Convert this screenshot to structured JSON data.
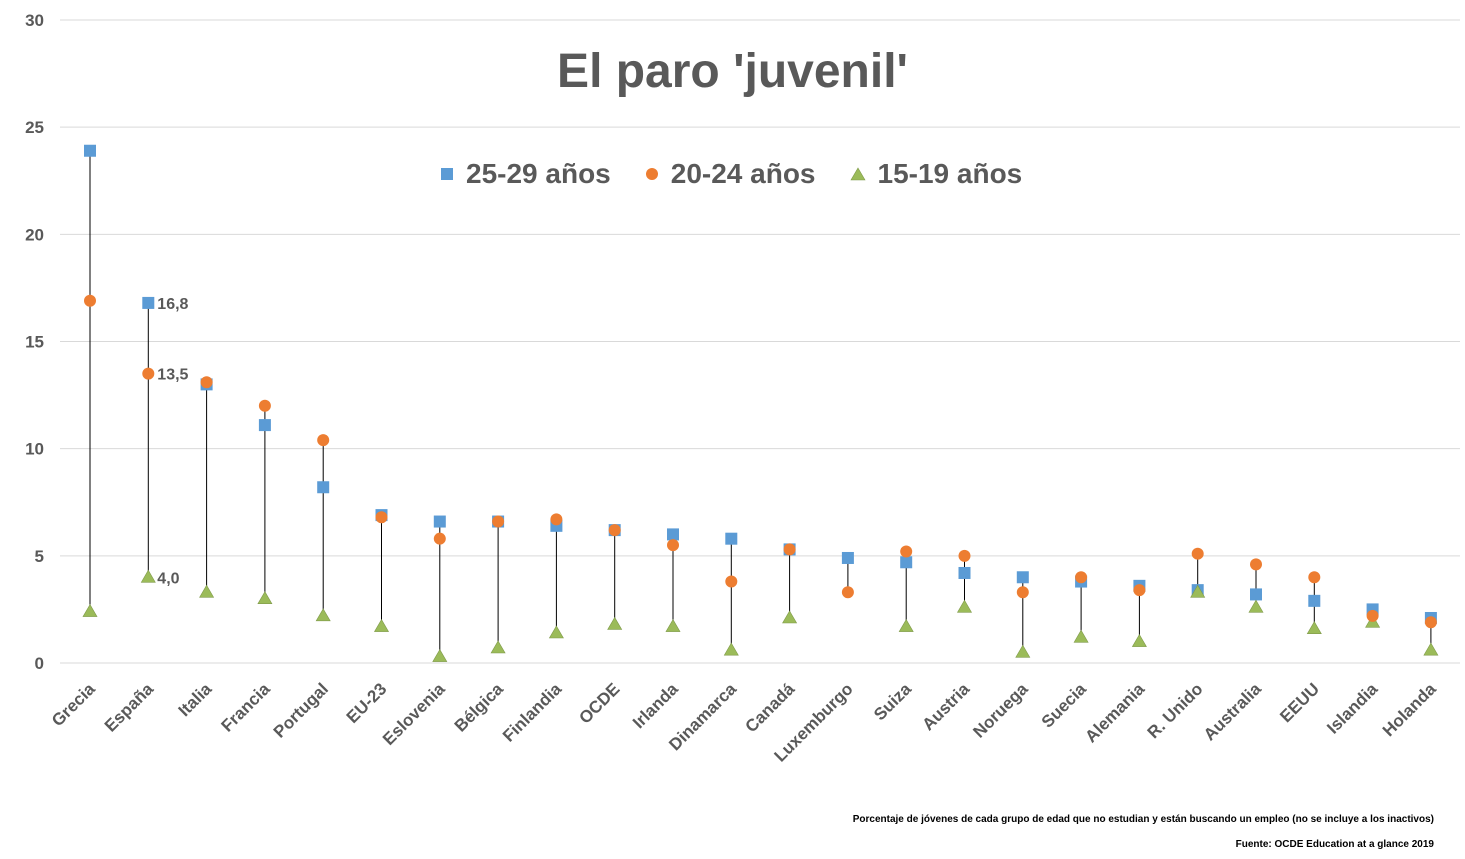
{
  "chart_data": {
    "type": "scatter",
    "title": "El paro 'juvenil'",
    "categories": [
      "Grecia",
      "España",
      "Italia",
      "Francia",
      "Portugal",
      "EU-23",
      "Eslovenia",
      "Bélgica",
      "Finlandia",
      "OCDE",
      "Irlanda",
      "Dinamarca",
      "Canadá",
      "Luxemburgo",
      "Suiza",
      "Austria",
      "Noruega",
      "Suecia",
      "Alemania",
      "R. Unido",
      "Australia",
      "EEUU",
      "Islandia",
      "Holanda"
    ],
    "series": [
      {
        "name": "25-29 años",
        "marker": "square",
        "color": "#5B9BD5",
        "values": [
          23.9,
          16.8,
          13.0,
          11.1,
          8.2,
          6.9,
          6.6,
          6.6,
          6.4,
          6.2,
          6.0,
          5.8,
          5.3,
          4.9,
          4.7,
          4.2,
          4.0,
          3.8,
          3.6,
          3.4,
          3.2,
          2.9,
          2.5,
          2.1
        ]
      },
      {
        "name": "20-24 años",
        "marker": "circle",
        "color": "#ED7D31",
        "values": [
          16.9,
          13.5,
          13.1,
          12.0,
          10.4,
          6.8,
          5.8,
          6.6,
          6.7,
          6.2,
          5.5,
          3.8,
          5.3,
          3.3,
          5.2,
          5.0,
          3.3,
          4.0,
          3.4,
          5.1,
          4.6,
          4.0,
          2.2,
          1.9
        ]
      },
      {
        "name": "15-19 años",
        "marker": "triangle",
        "color": "#9BBB59",
        "values": [
          2.4,
          4.0,
          3.3,
          3.0,
          2.2,
          1.7,
          0.3,
          0.7,
          1.4,
          1.8,
          1.7,
          0.6,
          2.1,
          null,
          1.7,
          2.6,
          0.5,
          1.2,
          1.0,
          3.3,
          2.6,
          1.6,
          1.9,
          0.6
        ]
      }
    ],
    "data_labels": [
      {
        "category": "España",
        "series": "25-29 años",
        "text": "16,8"
      },
      {
        "category": "España",
        "series": "20-24 años",
        "text": "13,5"
      },
      {
        "category": "España",
        "series": "15-19 años",
        "text": "4,0"
      }
    ],
    "yticks": [
      "0",
      "5",
      "10",
      "15",
      "20",
      "25",
      "30"
    ],
    "ylim": [
      0,
      30
    ],
    "xlabel": "",
    "ylabel": "",
    "grid": true,
    "legend_position": "top-center",
    "note": "Porcentaje de jóvenes de cada grupo de edad que no estudian y están buscando un empleo (no se incluye a los inactivos)",
    "source": "Fuente: OCDE Education at a glance 2019"
  }
}
